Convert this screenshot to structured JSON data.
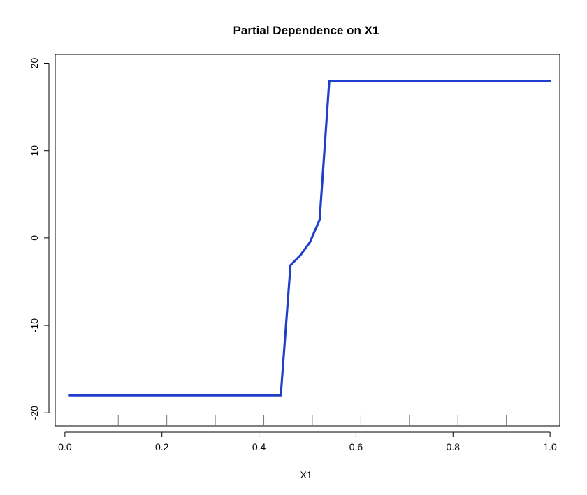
{
  "chart_data": {
    "type": "line",
    "title": "Partial Dependence on X1",
    "xlabel": "X1",
    "ylabel": "",
    "xlim": [
      -0.02,
      1.02
    ],
    "ylim": [
      -21.5,
      21
    ],
    "xticks": [
      0.0,
      0.2,
      0.4,
      0.6,
      0.8,
      1.0
    ],
    "xtick_labels": [
      "0.0",
      "0.2",
      "0.4",
      "0.6",
      "0.8",
      "1.0"
    ],
    "yticks": [
      -20,
      -10,
      0,
      10,
      20
    ],
    "ytick_labels": [
      "-20",
      "-10",
      "0",
      "10",
      "20"
    ],
    "rug": [
      0.11,
      0.21,
      0.31,
      0.41,
      0.51,
      0.61,
      0.71,
      0.81,
      0.91
    ],
    "grid": false,
    "series": [
      {
        "color": "#1f3fcc",
        "x": [
          0.01,
          0.445,
          0.465,
          0.485,
          0.505,
          0.525,
          0.545,
          1.0
        ],
        "y": [
          -18,
          -18,
          -3.1,
          -2.0,
          -0.5,
          2.1,
          18,
          18
        ]
      }
    ]
  }
}
